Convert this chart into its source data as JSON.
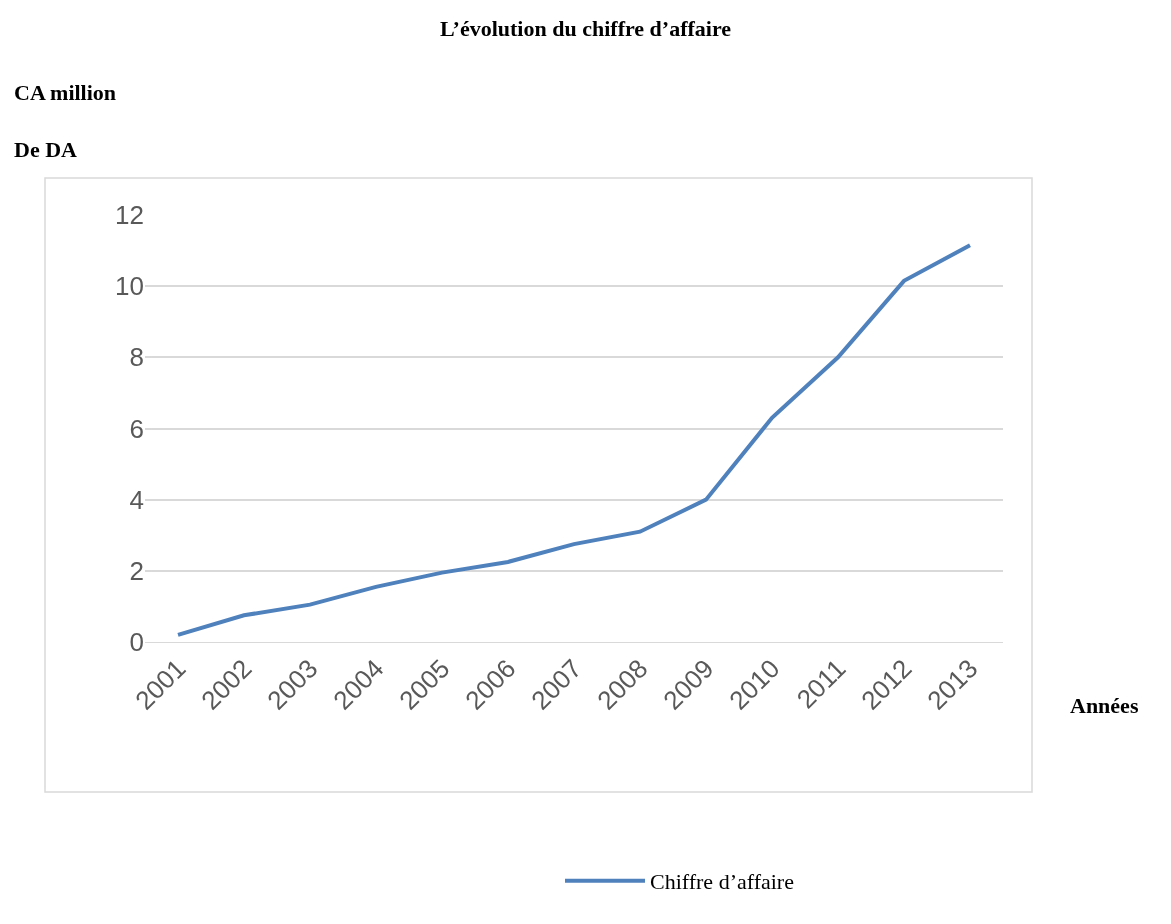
{
  "chart_data": {
    "type": "line",
    "title": "L’évolution du chiffre d’affaire",
    "ylabel": "CA million\nDe DA",
    "xlabel": "Années",
    "categories": [
      "2001",
      "2002",
      "2003",
      "2004",
      "2005",
      "2006",
      "2007",
      "2008",
      "2009",
      "2010",
      "2011",
      "2012",
      "2013"
    ],
    "series": [
      {
        "name": "Chiffre d’affaire",
        "color": "#4f81bd",
        "values": [
          0.2,
          0.75,
          1.05,
          1.55,
          1.95,
          2.25,
          2.75,
          3.1,
          4.0,
          6.3,
          8.0,
          10.15,
          11.15
        ]
      }
    ],
    "ylim": [
      0,
      12
    ],
    "yticks": [
      0,
      2,
      4,
      6,
      8,
      10,
      12
    ],
    "grid": "y",
    "legend": "bottom",
    "marker": "none",
    "line_style": "solid"
  }
}
